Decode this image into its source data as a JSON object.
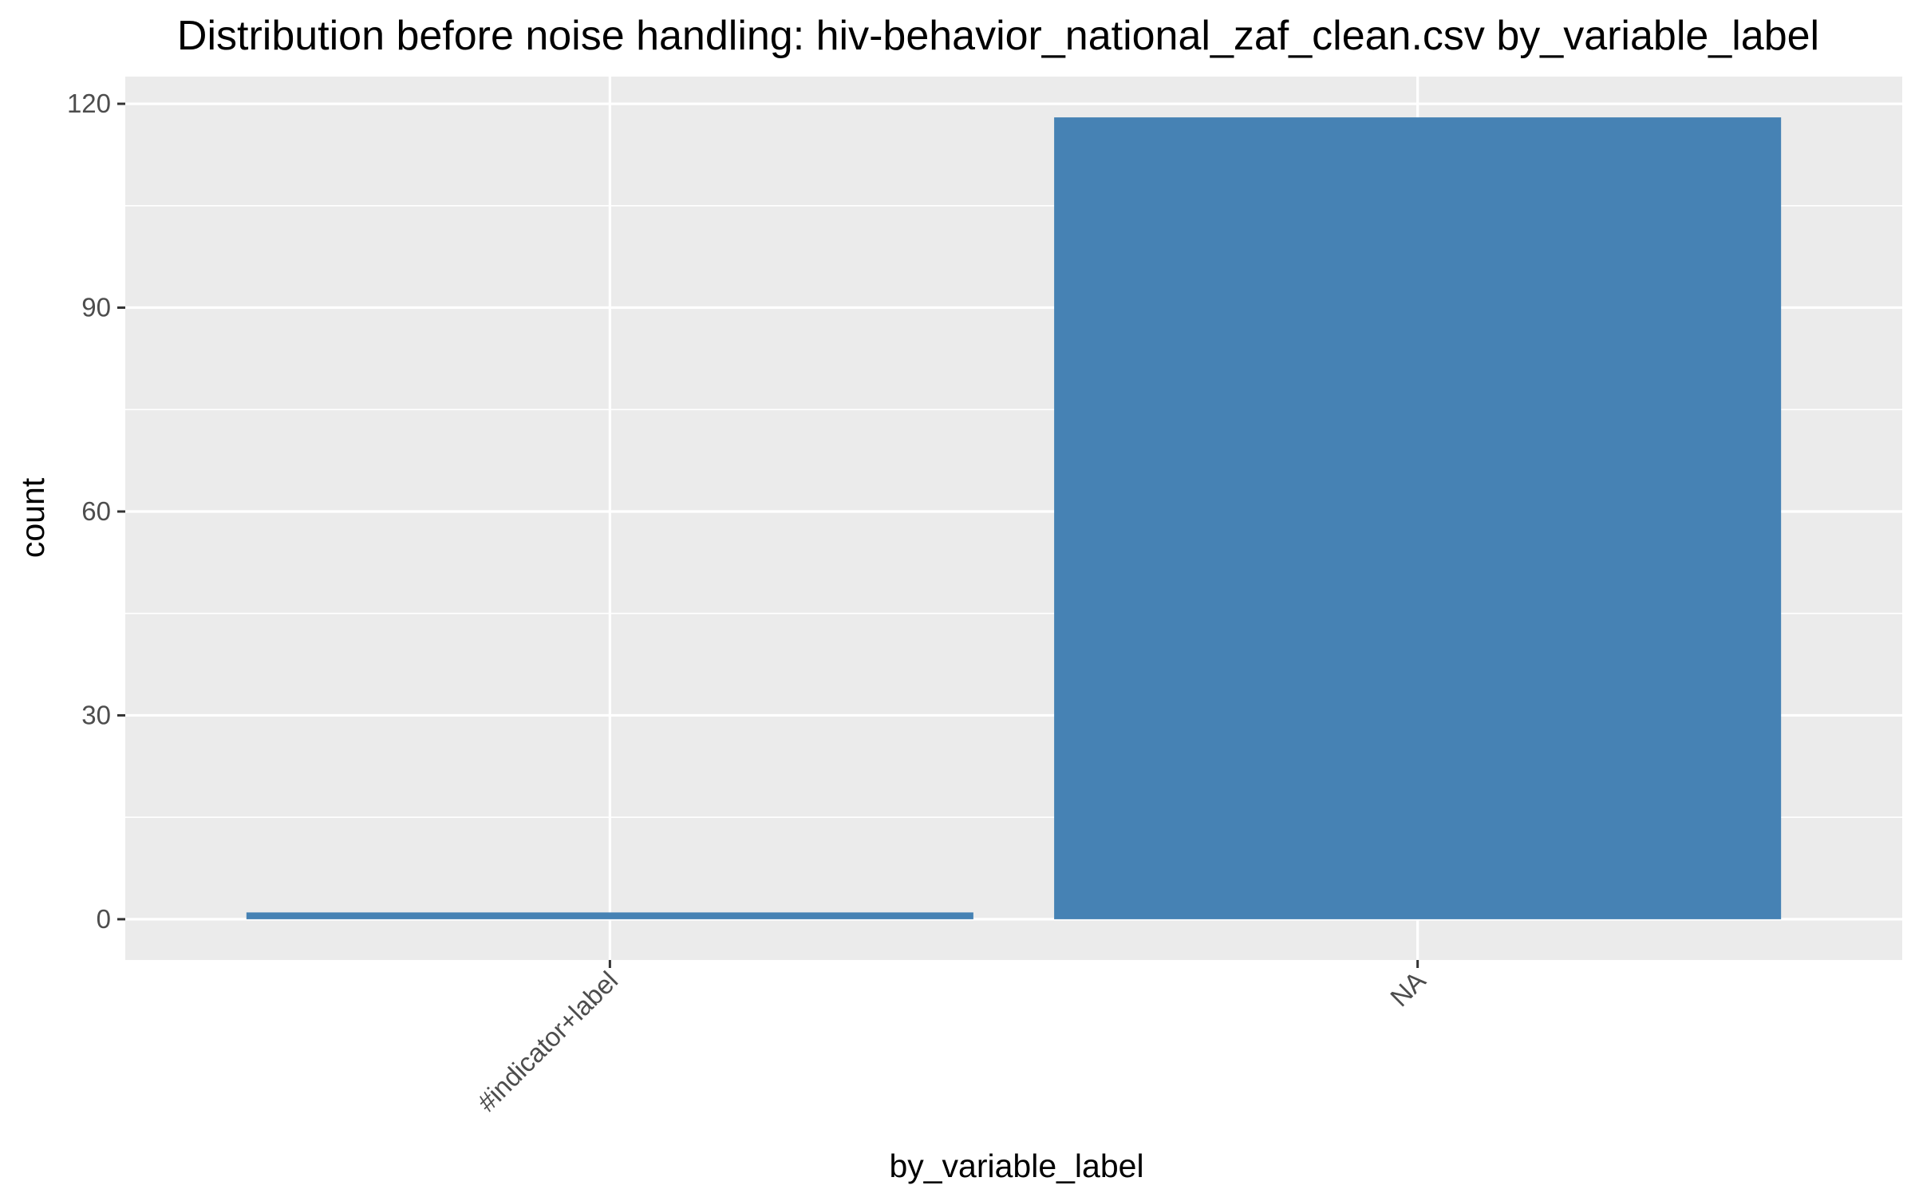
{
  "chart_data": {
    "type": "bar",
    "title": "Distribution before noise handling: hiv-behavior_national_zaf_clean.csv by_variable_label",
    "xlabel": "by_variable_label",
    "ylabel": "count",
    "categories": [
      "#indicator+label",
      "NA"
    ],
    "values": [
      1,
      118
    ],
    "ylim": [
      -6,
      124
    ],
    "yticks": [
      0,
      30,
      60,
      90,
      120
    ],
    "grid": true,
    "legend": "none",
    "colors": {
      "bar": "#4682b4",
      "panel": "#ebebeb",
      "grid": "#ffffff",
      "tick_text": "#4d4d4d"
    }
  }
}
